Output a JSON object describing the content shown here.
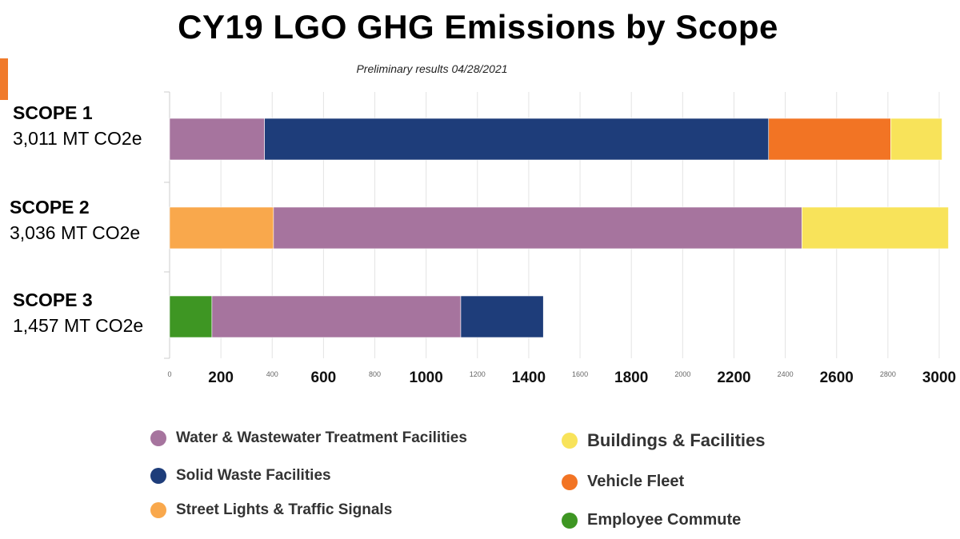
{
  "title": "CY19 LGO GHG Emissions by Scope",
  "subtitle": "Preliminary results 04/28/2021",
  "colors": {
    "accent": "#F07A2B",
    "water": "#A6749E",
    "solid_waste": "#1E3D7A",
    "street_lights": "#F9A84C",
    "buildings": "#F8E35A",
    "vehicle": "#F27424",
    "commute": "#3E9623"
  },
  "rows": [
    {
      "scope": "SCOPE 1",
      "total": "3,011 MT CO2e"
    },
    {
      "scope": "SCOPE 2",
      "total": "3,036 MT CO2e"
    },
    {
      "scope": "SCOPE 3",
      "total": "1,457 MT CO2e"
    }
  ],
  "legend": [
    {
      "label": "Water & Wastewater Treatment Facilities",
      "color": "#A6749E"
    },
    {
      "label": "Solid Waste Facilities",
      "color": "#1E3D7A"
    },
    {
      "label": "Street Lights & Traffic Signals",
      "color": "#F9A84C"
    },
    {
      "label": "Buildings & Facilities",
      "color": "#F8E35A"
    },
    {
      "label": "Vehicle Fleet",
      "color": "#F27424"
    },
    {
      "label": "Employee Commute",
      "color": "#3E9623"
    }
  ],
  "chart_data": {
    "type": "bar",
    "orientation": "horizontal",
    "stacked": true,
    "title": "CY19 LGO GHG Emissions by Scope",
    "subtitle": "Preliminary results 04/28/2021",
    "categories": [
      "SCOPE 1",
      "SCOPE 2",
      "SCOPE 3"
    ],
    "xlim": [
      0,
      3000
    ],
    "x_ticks": [
      {
        "value": 0,
        "label": "0",
        "bold": false
      },
      {
        "value": 200,
        "label": "200",
        "bold": true
      },
      {
        "value": 400,
        "label": "400",
        "bold": false
      },
      {
        "value": 600,
        "label": "600",
        "bold": true
      },
      {
        "value": 800,
        "label": "800",
        "bold": false
      },
      {
        "value": 1000,
        "label": "1000",
        "bold": true
      },
      {
        "value": 1200,
        "label": "1200",
        "bold": false
      },
      {
        "value": 1400,
        "label": "1400",
        "bold": true
      },
      {
        "value": 1600,
        "label": "1600",
        "bold": false
      },
      {
        "value": 1800,
        "label": "1800",
        "bold": true
      },
      {
        "value": 2000,
        "label": "2000",
        "bold": false
      },
      {
        "value": 2200,
        "label": "2200",
        "bold": true
      },
      {
        "value": 2400,
        "label": "2400",
        "bold": false
      },
      {
        "value": 2600,
        "label": "2600",
        "bold": true
      },
      {
        "value": 2800,
        "label": "2800",
        "bold": false
      },
      {
        "value": 3000,
        "label": "3000",
        "bold": true
      }
    ],
    "grid": true,
    "legend_position": "bottom",
    "series": [
      {
        "name": "Water & Wastewater Treatment Facilities",
        "color": "#A6749E",
        "values": [
          370,
          2060,
          970
        ]
      },
      {
        "name": "Solid Waste Facilities",
        "color": "#1E3D7A",
        "values": [
          1965,
          0,
          322
        ]
      },
      {
        "name": "Street Lights & Traffic Signals",
        "color": "#F9A84C",
        "values": [
          0,
          405,
          0
        ]
      },
      {
        "name": "Buildings & Facilities",
        "color": "#F8E35A",
        "values": [
          200,
          571,
          0
        ]
      },
      {
        "name": "Vehicle Fleet",
        "color": "#F27424",
        "values": [
          476,
          0,
          0
        ]
      },
      {
        "name": "Employee Commute",
        "color": "#3E9623",
        "values": [
          0,
          0,
          165
        ]
      }
    ],
    "stack_order": [
      [
        "Water & Wastewater Treatment Facilities",
        "Solid Waste Facilities",
        "Vehicle Fleet",
        "Buildings & Facilities"
      ],
      [
        "Street Lights & Traffic Signals",
        "Water & Wastewater Treatment Facilities",
        "Buildings & Facilities"
      ],
      [
        "Employee Commute",
        "Water & Wastewater Treatment Facilities",
        "Solid Waste Facilities"
      ]
    ]
  }
}
